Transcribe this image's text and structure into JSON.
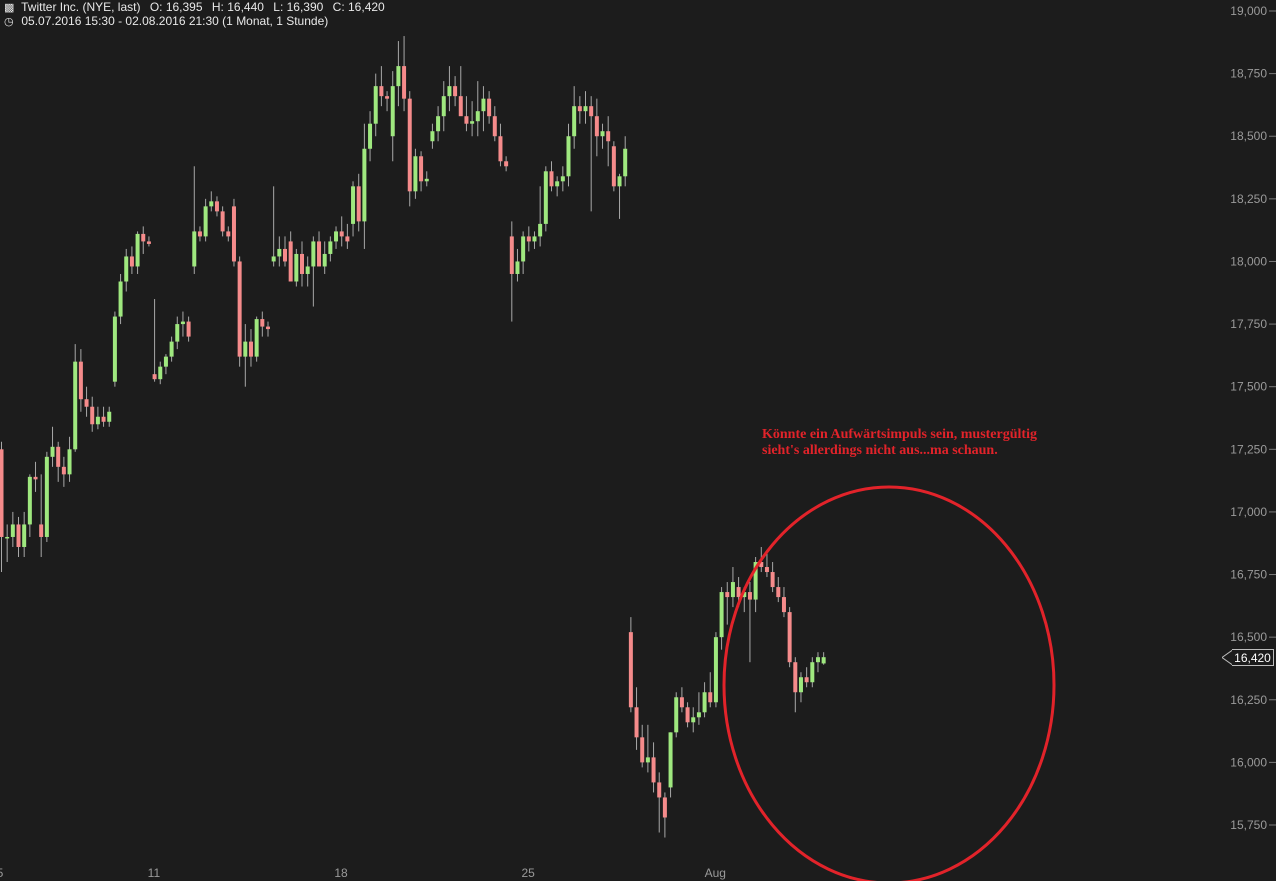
{
  "header": {
    "line1_icon": "bars-icon",
    "title": "Twitter Inc. (NYE, last)",
    "open": "O: 16,395",
    "high": "H: 16,440",
    "low": "L: 16,390",
    "close": "C: 16,420",
    "line2_icon": "clock-icon",
    "range": "05.07.2016 15:30 - 02.08.2016 21:30 (1 Monat, 1 Stunde)"
  },
  "annotation": {
    "text": "Könnte ein Aufwärtsimpuls sein, mustergültig sieht's allerdings nicht aus...ma schaun."
  },
  "last_price": "16,420",
  "chart_data": {
    "type": "candlestick",
    "y_ticks": [
      {
        "value": 19.0,
        "label": "19,000"
      },
      {
        "value": 18.75,
        "label": "18,750"
      },
      {
        "value": 18.5,
        "label": "18,500"
      },
      {
        "value": 18.25,
        "label": "18,250"
      },
      {
        "value": 18.0,
        "label": "18,000"
      },
      {
        "value": 17.75,
        "label": "17,750"
      },
      {
        "value": 17.5,
        "label": "17,500"
      },
      {
        "value": 17.25,
        "label": "17,250"
      },
      {
        "value": 17.0,
        "label": "17,000"
      },
      {
        "value": 16.75,
        "label": "16,750"
      },
      {
        "value": 16.5,
        "label": "16,500"
      },
      {
        "value": 16.25,
        "label": "16,250"
      },
      {
        "value": 16.0,
        "label": "16,000"
      },
      {
        "value": 15.75,
        "label": "15,750"
      }
    ],
    "ylim": [
      15.56,
      19.05
    ],
    "x_ticks": [
      {
        "index": 0,
        "label": "5"
      },
      {
        "index": 26,
        "label": "11"
      },
      {
        "index": 59,
        "label": "18"
      },
      {
        "index": 92,
        "label": "25"
      },
      {
        "index": 125,
        "label": "Aug"
      }
    ],
    "up_color": "#9fe87f",
    "down_color": "#f58b8b",
    "candles": [
      [
        17.25,
        17.28,
        16.76,
        16.9
      ],
      [
        16.9,
        16.95,
        16.8,
        16.9
      ],
      [
        16.9,
        17.0,
        16.86,
        16.95
      ],
      [
        16.95,
        16.98,
        16.82,
        16.86
      ],
      [
        16.86,
        17.0,
        16.82,
        16.95
      ],
      [
        16.95,
        17.15,
        16.9,
        17.14
      ],
      [
        17.14,
        17.2,
        17.08,
        17.13
      ],
      [
        16.95,
        17.15,
        16.82,
        16.9
      ],
      [
        16.9,
        17.24,
        16.88,
        17.22
      ],
      [
        17.22,
        17.34,
        17.18,
        17.26
      ],
      [
        17.26,
        17.28,
        17.12,
        17.18
      ],
      [
        17.18,
        17.22,
        17.1,
        17.15
      ],
      [
        17.15,
        17.3,
        17.12,
        17.25
      ],
      [
        17.25,
        17.67,
        17.24,
        17.6
      ],
      [
        17.6,
        17.65,
        17.4,
        17.45
      ],
      [
        17.45,
        17.5,
        17.38,
        17.42
      ],
      [
        17.42,
        17.46,
        17.32,
        17.35
      ],
      [
        17.35,
        17.42,
        17.33,
        17.38
      ],
      [
        17.38,
        17.42,
        17.34,
        17.36
      ],
      [
        17.36,
        17.42,
        17.34,
        17.4
      ],
      [
        17.52,
        17.8,
        17.5,
        17.78
      ],
      [
        17.78,
        17.95,
        17.75,
        17.92
      ],
      [
        17.92,
        18.05,
        17.88,
        18.02
      ],
      [
        18.02,
        18.06,
        17.95,
        17.98
      ],
      [
        17.98,
        18.12,
        17.95,
        18.11
      ],
      [
        18.11,
        18.14,
        18.03,
        18.08
      ],
      [
        18.08,
        18.1,
        18.06,
        18.07
      ],
      [
        17.55,
        17.85,
        17.52,
        17.53
      ],
      [
        17.53,
        17.6,
        17.51,
        17.58
      ],
      [
        17.58,
        17.63,
        17.55,
        17.62
      ],
      [
        17.62,
        17.7,
        17.6,
        17.68
      ],
      [
        17.68,
        17.78,
        17.65,
        17.75
      ],
      [
        17.75,
        17.8,
        17.7,
        17.76
      ],
      [
        17.76,
        17.78,
        17.68,
        17.7
      ],
      [
        17.98,
        18.38,
        17.95,
        18.12
      ],
      [
        18.12,
        18.14,
        18.08,
        18.1
      ],
      [
        18.1,
        18.25,
        18.08,
        18.22
      ],
      [
        18.22,
        18.28,
        18.2,
        18.24
      ],
      [
        18.24,
        18.26,
        18.18,
        18.2
      ],
      [
        18.2,
        18.22,
        18.1,
        18.12
      ],
      [
        18.12,
        18.14,
        18.08,
        18.1
      ],
      [
        18.22,
        18.25,
        17.98,
        18.0
      ],
      [
        18.0,
        18.02,
        17.58,
        17.62
      ],
      [
        17.62,
        17.75,
        17.5,
        17.68
      ],
      [
        17.68,
        17.73,
        17.58,
        17.62
      ],
      [
        17.62,
        17.78,
        17.6,
        17.77
      ],
      [
        17.77,
        17.8,
        17.7,
        17.74
      ],
      [
        17.74,
        17.76,
        17.7,
        17.73
      ],
      [
        18.0,
        18.3,
        17.98,
        18.02
      ],
      [
        18.02,
        18.1,
        17.98,
        18.05
      ],
      [
        18.05,
        18.1,
        17.98,
        18.0
      ],
      [
        18.08,
        18.12,
        17.95,
        17.92
      ],
      [
        17.92,
        18.05,
        17.9,
        18.03
      ],
      [
        18.03,
        18.08,
        17.9,
        17.95
      ],
      [
        17.95,
        18.02,
        17.9,
        17.98
      ],
      [
        17.98,
        18.1,
        17.82,
        18.08
      ],
      [
        18.08,
        18.12,
        17.98,
        17.98
      ],
      [
        17.98,
        18.08,
        17.95,
        18.03
      ],
      [
        18.03,
        18.1,
        18.0,
        18.08
      ],
      [
        18.08,
        18.14,
        18.05,
        18.12
      ],
      [
        18.12,
        18.18,
        18.06,
        18.1
      ],
      [
        18.1,
        18.15,
        18.05,
        18.08
      ],
      [
        18.15,
        18.32,
        18.1,
        18.3
      ],
      [
        18.3,
        18.35,
        18.12,
        18.16
      ],
      [
        18.16,
        18.55,
        18.05,
        18.45
      ],
      [
        18.45,
        18.6,
        18.4,
        18.55
      ],
      [
        18.55,
        18.75,
        18.5,
        18.7
      ],
      [
        18.7,
        18.78,
        18.62,
        18.66
      ],
      [
        18.66,
        18.68,
        18.6,
        18.65
      ],
      [
        18.5,
        18.76,
        18.4,
        18.7
      ],
      [
        18.7,
        18.88,
        18.62,
        18.78
      ],
      [
        18.78,
        18.9,
        18.6,
        18.65
      ],
      [
        18.65,
        18.68,
        18.22,
        18.28
      ],
      [
        18.28,
        18.45,
        18.25,
        18.42
      ],
      [
        18.42,
        18.44,
        18.28,
        18.32
      ],
      [
        18.32,
        18.36,
        18.3,
        18.33
      ],
      [
        18.48,
        18.55,
        18.45,
        18.52
      ],
      [
        18.52,
        18.62,
        18.48,
        18.58
      ],
      [
        18.58,
        18.72,
        18.52,
        18.66
      ],
      [
        18.66,
        18.78,
        18.6,
        18.7
      ],
      [
        18.7,
        18.74,
        18.62,
        18.66
      ],
      [
        18.66,
        18.78,
        18.6,
        18.58
      ],
      [
        18.58,
        18.66,
        18.52,
        18.55
      ],
      [
        18.55,
        18.64,
        18.5,
        18.56
      ],
      [
        18.56,
        18.72,
        18.5,
        18.6
      ],
      [
        18.6,
        18.7,
        18.52,
        18.65
      ],
      [
        18.65,
        18.68,
        18.55,
        18.58
      ],
      [
        18.58,
        18.62,
        18.48,
        18.5
      ],
      [
        18.5,
        18.55,
        18.38,
        18.4
      ],
      [
        18.4,
        18.42,
        18.36,
        18.38
      ],
      [
        18.1,
        18.16,
        17.76,
        17.95
      ],
      [
        17.95,
        18.05,
        17.92,
        18.0
      ],
      [
        18.0,
        18.12,
        17.95,
        18.1
      ],
      [
        18.1,
        18.14,
        18.04,
        18.08
      ],
      [
        18.08,
        18.12,
        18.05,
        18.1
      ],
      [
        18.1,
        18.3,
        18.06,
        18.15
      ],
      [
        18.15,
        18.38,
        18.12,
        18.36
      ],
      [
        18.36,
        18.4,
        18.28,
        18.3
      ],
      [
        18.3,
        18.34,
        18.26,
        18.32
      ],
      [
        18.32,
        18.38,
        18.28,
        18.34
      ],
      [
        18.34,
        18.55,
        18.3,
        18.5
      ],
      [
        18.5,
        18.7,
        18.45,
        18.62
      ],
      [
        18.62,
        18.66,
        18.55,
        18.6
      ],
      [
        18.6,
        18.68,
        18.55,
        18.62
      ],
      [
        18.62,
        18.66,
        18.2,
        18.58
      ],
      [
        18.58,
        18.65,
        18.42,
        18.5
      ],
      [
        18.5,
        18.55,
        18.45,
        18.52
      ],
      [
        18.52,
        18.58,
        18.38,
        18.48
      ],
      [
        18.46,
        18.48,
        18.28,
        18.3
      ],
      [
        18.3,
        18.35,
        18.17,
        18.34
      ],
      [
        18.34,
        18.5,
        18.3,
        18.45
      ],
      [
        16.52,
        16.58,
        16.2,
        16.22
      ],
      [
        16.22,
        16.3,
        16.05,
        16.1
      ],
      [
        16.1,
        16.15,
        15.98,
        16.0
      ],
      [
        16.0,
        16.15,
        15.96,
        16.02
      ],
      [
        16.02,
        16.08,
        15.88,
        15.92
      ],
      [
        15.92,
        15.96,
        15.72,
        15.86
      ],
      [
        15.86,
        15.88,
        15.7,
        15.78
      ],
      [
        15.9,
        16.12,
        15.86,
        16.12
      ],
      [
        16.12,
        16.28,
        16.1,
        16.26
      ],
      [
        16.26,
        16.3,
        16.2,
        16.22
      ],
      [
        16.22,
        16.24,
        16.14,
        16.16
      ],
      [
        16.16,
        16.22,
        16.12,
        16.18
      ],
      [
        16.18,
        16.28,
        16.15,
        16.2
      ],
      [
        16.2,
        16.32,
        16.18,
        16.28
      ],
      [
        16.28,
        16.36,
        16.22,
        16.24
      ],
      [
        16.24,
        16.52,
        16.22,
        16.5
      ],
      [
        16.5,
        16.7,
        16.45,
        16.68
      ],
      [
        16.68,
        16.72,
        16.55,
        16.66
      ],
      [
        16.66,
        16.78,
        16.62,
        16.72
      ],
      [
        16.7,
        16.74,
        16.62,
        16.66
      ],
      [
        16.66,
        16.7,
        16.6,
        16.68
      ],
      [
        16.68,
        16.72,
        16.4,
        16.65
      ],
      [
        16.65,
        16.82,
        16.6,
        16.8
      ],
      [
        16.8,
        16.86,
        16.76,
        16.78
      ],
      [
        16.78,
        16.84,
        16.74,
        16.76
      ],
      [
        16.76,
        16.8,
        16.68,
        16.7
      ],
      [
        16.7,
        16.74,
        16.64,
        16.66
      ],
      [
        16.66,
        16.7,
        16.58,
        16.6
      ],
      [
        16.6,
        16.62,
        16.38,
        16.4
      ],
      [
        16.4,
        16.42,
        16.2,
        16.28
      ],
      [
        16.28,
        16.36,
        16.24,
        16.34
      ],
      [
        16.34,
        16.38,
        16.3,
        16.32
      ],
      [
        16.32,
        16.42,
        16.3,
        16.4
      ],
      [
        16.4,
        16.44,
        16.36,
        16.42
      ],
      [
        16.395,
        16.44,
        16.39,
        16.42
      ]
    ]
  }
}
